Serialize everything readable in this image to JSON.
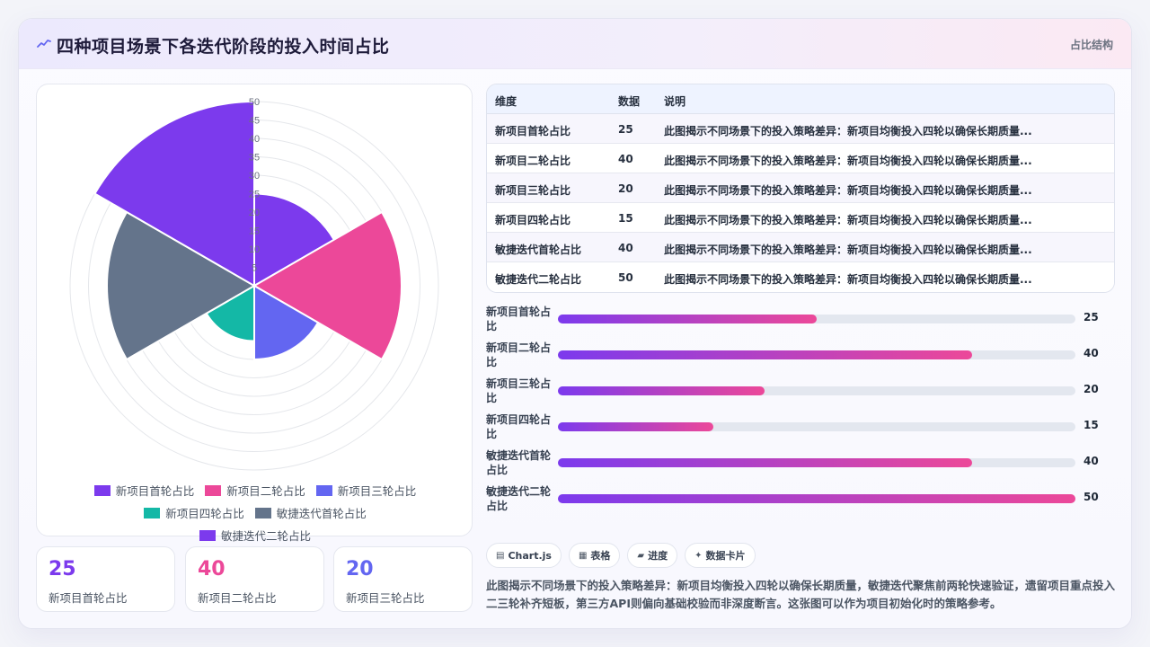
{
  "header": {
    "title": "四种项目场景下各迭代阶段的投入时间占比",
    "tag": "占比结构"
  },
  "chart_data": {
    "type": "polarArea",
    "categories": [
      "新项目首轮占比",
      "新项目二轮占比",
      "新项目三轮占比",
      "新项目四轮占比",
      "敏捷迭代首轮占比",
      "敏捷迭代二轮占比"
    ],
    "values": [
      25,
      40,
      20,
      15,
      40,
      50
    ],
    "colors": [
      "#7c3aed",
      "#ec4899",
      "#6366f1",
      "#14b8a6",
      "#64748b",
      "#7c3aed"
    ],
    "rmax": 50,
    "ticks": [
      "5",
      "10",
      "15",
      "20",
      "25",
      "30",
      "35",
      "40",
      "45",
      "50"
    ],
    "grid": true,
    "legend": "bottom"
  },
  "stats": [
    {
      "value": "25",
      "label": "新项目首轮占比",
      "color": "#7c3aed"
    },
    {
      "value": "40",
      "label": "新项目二轮占比",
      "color": "#ec4899"
    },
    {
      "value": "20",
      "label": "新项目三轮占比",
      "color": "#6366f1"
    }
  ],
  "table": {
    "headers": [
      "维度",
      "数据",
      "说明"
    ],
    "rows": [
      {
        "dim": "新项目首轮占比",
        "val": "25",
        "desc": "此图揭示不同场景下的投入策略差异：新项目均衡投入四轮以确保长期质量..."
      },
      {
        "dim": "新项目二轮占比",
        "val": "40",
        "desc": "此图揭示不同场景下的投入策略差异：新项目均衡投入四轮以确保长期质量..."
      },
      {
        "dim": "新项目三轮占比",
        "val": "20",
        "desc": "此图揭示不同场景下的投入策略差异：新项目均衡投入四轮以确保长期质量..."
      },
      {
        "dim": "新项目四轮占比",
        "val": "15",
        "desc": "此图揭示不同场景下的投入策略差异：新项目均衡投入四轮以确保长期质量..."
      },
      {
        "dim": "敏捷迭代首轮占比",
        "val": "40",
        "desc": "此图揭示不同场景下的投入策略差异：新项目均衡投入四轮以确保长期质量..."
      },
      {
        "dim": "敏捷迭代二轮占比",
        "val": "50",
        "desc": "此图揭示不同场景下的投入策略差异：新项目均衡投入四轮以确保长期质量..."
      }
    ]
  },
  "progress": {
    "max": 50,
    "items": [
      {
        "label": "新项目首轮占比",
        "value": 25,
        "display": "25"
      },
      {
        "label": "新项目二轮占比",
        "value": 40,
        "display": "40"
      },
      {
        "label": "新项目三轮占比",
        "value": 20,
        "display": "20"
      },
      {
        "label": "新项目四轮占比",
        "value": 15,
        "display": "15"
      },
      {
        "label": "敏捷迭代首轮占比",
        "value": 40,
        "display": "40"
      },
      {
        "label": "敏捷迭代二轮占比",
        "value": 50,
        "display": "50"
      }
    ]
  },
  "chips": [
    {
      "icon": "▤",
      "label": "Chart.js"
    },
    {
      "icon": "▦",
      "label": "表格"
    },
    {
      "icon": "▰",
      "label": "进度"
    },
    {
      "icon": "✦",
      "label": "数据卡片"
    }
  ],
  "summary": "此图揭示不同场景下的投入策略差异：新项目均衡投入四轮以确保长期质量，敏捷迭代聚焦前两轮快速验证，遗留项目重点投入二三轮补齐短板，第三方API则偏向基础校验而非深度断言。这张图可以作为项目初始化时的策略参考。"
}
